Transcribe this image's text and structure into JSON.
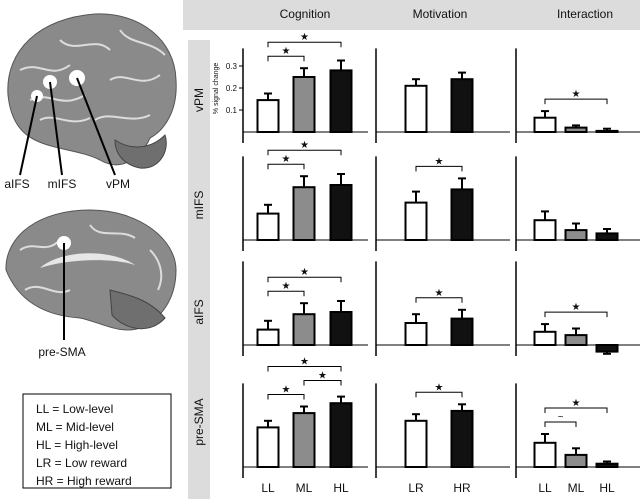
{
  "brain_labels": [
    "aIFS",
    "mIFS",
    "vPM",
    "pre-SMA"
  ],
  "legend": [
    "LL = Low-level",
    "ML = Mid-level",
    "HL = High-level",
    "LR = Low reward",
    "HR = High reward"
  ],
  "column_titles": [
    "Cognition",
    "Motivation",
    "Interaction"
  ],
  "row_labels": [
    "vPM",
    "mIFS",
    "aIFS",
    "pre-SMA"
  ],
  "x_labels": [
    [
      "LL",
      "ML",
      "HL"
    ],
    [
      "LR",
      "HR"
    ],
    [
      "LL",
      "ML",
      "HL"
    ]
  ],
  "chart_data": [
    {
      "type": "bar",
      "ylabel": "% signal change",
      "values": [
        0.145,
        0.25,
        0.28
      ],
      "errors": [
        0.03,
        0.04,
        0.045
      ],
      "colors": [
        "#ffffff",
        "#8c8c8c",
        "#111111"
      ],
      "ylim": [
        -0.05,
        0.38
      ],
      "yticks": [
        0.1,
        0.2,
        0.3
      ],
      "brackets": [
        {
          "between": [
            0,
            1
          ],
          "label": "★"
        },
        {
          "between": [
            0,
            2
          ],
          "label": "★"
        }
      ]
    },
    {
      "type": "bar",
      "values": [
        0.21,
        0.24
      ],
      "errors": [
        0.03,
        0.03
      ],
      "colors": [
        "#ffffff",
        "#111111"
      ],
      "ylim": [
        -0.05,
        0.38
      ],
      "brackets": []
    },
    {
      "type": "bar",
      "values": [
        0.065,
        0.02,
        0.005
      ],
      "errors": [
        0.03,
        0.01,
        0.01
      ],
      "colors": [
        "#ffffff",
        "#8c8c8c",
        "#111111"
      ],
      "ylim": [
        -0.05,
        0.38
      ],
      "brackets": [
        {
          "between": [
            0,
            2
          ],
          "label": "★"
        }
      ]
    },
    {
      "type": "bar",
      "values": [
        0.12,
        0.24,
        0.25
      ],
      "errors": [
        0.04,
        0.05,
        0.05
      ],
      "colors": [
        "#ffffff",
        "#8c8c8c",
        "#111111"
      ],
      "ylim": [
        -0.05,
        0.38
      ],
      "brackets": [
        {
          "between": [
            0,
            1
          ],
          "label": "★"
        },
        {
          "between": [
            0,
            2
          ],
          "label": "★"
        }
      ]
    },
    {
      "type": "bar",
      "values": [
        0.17,
        0.23
      ],
      "errors": [
        0.05,
        0.05
      ],
      "colors": [
        "#ffffff",
        "#111111"
      ],
      "ylim": [
        -0.05,
        0.38
      ],
      "brackets": [
        {
          "between": [
            0,
            1
          ],
          "label": "★"
        }
      ]
    },
    {
      "type": "bar",
      "values": [
        0.09,
        0.045,
        0.03
      ],
      "errors": [
        0.04,
        0.03,
        0.02
      ],
      "colors": [
        "#ffffff",
        "#8c8c8c",
        "#111111"
      ],
      "ylim": [
        -0.05,
        0.38
      ],
      "brackets": []
    },
    {
      "type": "bar",
      "values": [
        0.07,
        0.14,
        0.15
      ],
      "errors": [
        0.04,
        0.05,
        0.05
      ],
      "colors": [
        "#ffffff",
        "#8c8c8c",
        "#111111"
      ],
      "ylim": [
        -0.05,
        0.38
      ],
      "brackets": [
        {
          "between": [
            0,
            1
          ],
          "label": "★"
        },
        {
          "between": [
            0,
            2
          ],
          "label": "★"
        }
      ]
    },
    {
      "type": "bar",
      "values": [
        0.1,
        0.12
      ],
      "errors": [
        0.04,
        0.04
      ],
      "colors": [
        "#ffffff",
        "#111111"
      ],
      "ylim": [
        -0.05,
        0.38
      ],
      "brackets": [
        {
          "between": [
            0,
            1
          ],
          "label": "★"
        }
      ]
    },
    {
      "type": "bar",
      "values": [
        0.06,
        0.045,
        -0.03
      ],
      "errors": [
        0.035,
        0.03,
        0.01
      ],
      "colors": [
        "#ffffff",
        "#8c8c8c",
        "#111111"
      ],
      "ylim": [
        -0.05,
        0.38
      ],
      "brackets": [
        {
          "between": [
            0,
            2
          ],
          "label": "★"
        }
      ]
    },
    {
      "type": "bar",
      "values": [
        0.18,
        0.245,
        0.29
      ],
      "errors": [
        0.03,
        0.03,
        0.03
      ],
      "colors": [
        "#ffffff",
        "#8c8c8c",
        "#111111"
      ],
      "ylim": [
        -0.05,
        0.38
      ],
      "brackets": [
        {
          "between": [
            0,
            1
          ],
          "label": "★"
        },
        {
          "between": [
            1,
            2
          ],
          "label": "★"
        },
        {
          "between": [
            0,
            2
          ],
          "label": "★"
        }
      ]
    },
    {
      "type": "bar",
      "values": [
        0.21,
        0.255
      ],
      "errors": [
        0.03,
        0.03
      ],
      "colors": [
        "#ffffff",
        "#111111"
      ],
      "ylim": [
        -0.05,
        0.38
      ],
      "brackets": [
        {
          "between": [
            0,
            1
          ],
          "label": "★"
        }
      ]
    },
    {
      "type": "bar",
      "values": [
        0.11,
        0.055,
        0.015
      ],
      "errors": [
        0.04,
        0.03,
        0.01
      ],
      "colors": [
        "#ffffff",
        "#8c8c8c",
        "#111111"
      ],
      "ylim": [
        -0.05,
        0.38
      ],
      "brackets": [
        {
          "between": [
            0,
            1
          ],
          "label": "~"
        },
        {
          "between": [
            0,
            2
          ],
          "label": "★"
        }
      ]
    }
  ]
}
